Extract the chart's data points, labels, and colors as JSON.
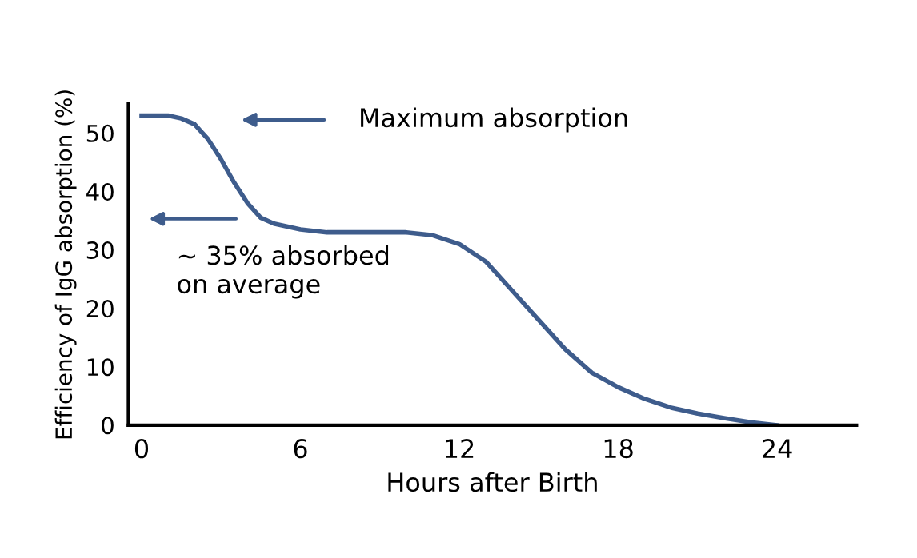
{
  "chart_data": {
    "type": "line",
    "xlabel": "Hours after Birth",
    "ylabel": "Efficiency of IgG absorption (%)",
    "x": [
      0,
      1,
      1.5,
      2,
      2.5,
      3,
      3.5,
      4,
      4.5,
      5,
      6,
      7,
      8,
      9,
      10,
      11,
      12,
      13,
      14,
      15,
      16,
      17,
      18,
      19,
      20,
      21,
      22,
      23,
      24
    ],
    "series": [
      {
        "color": "#3e5c8c",
        "values": [
          53,
          53,
          52.5,
          51.5,
          49,
          45.5,
          41.5,
          38,
          35.5,
          34.5,
          33.5,
          33,
          33,
          33,
          33,
          32.5,
          31,
          28,
          23,
          18,
          13,
          9,
          6.5,
          4.5,
          3,
          2,
          1.2,
          0.5,
          0
        ]
      }
    ],
    "xlim": [
      -0.5,
      27
    ],
    "ylim": [
      0,
      55
    ],
    "xticks": [
      0,
      6,
      12,
      18,
      24
    ],
    "yticks": [
      0,
      10,
      20,
      30,
      40,
      50
    ],
    "grid": false,
    "marker": "none",
    "line_style": "solid",
    "annotations": [
      "Maximum absorption",
      "~ 35% absorbed\non average"
    ]
  }
}
